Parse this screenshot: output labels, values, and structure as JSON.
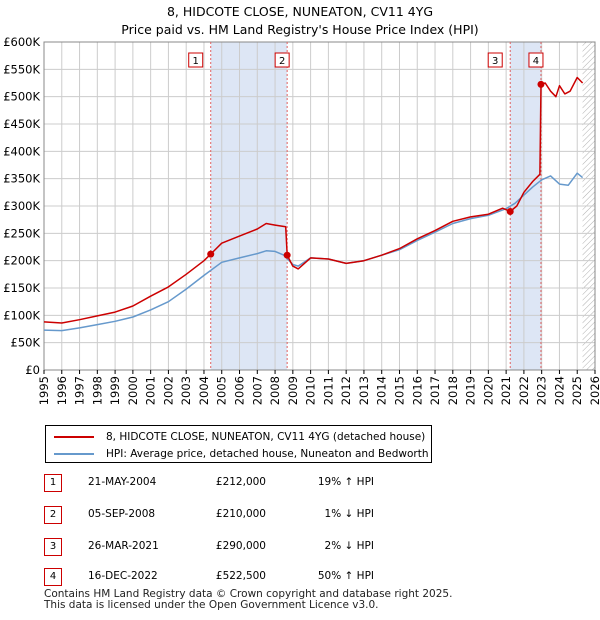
{
  "header": {
    "title_line1": "8, HIDCOTE CLOSE, NUNEATON, CV11 4YG",
    "title_line2": "Price paid vs. HM Land Registry's House Price Index (HPI)"
  },
  "colors": {
    "price_line": "#cc0000",
    "hpi_line": "#6699cc",
    "shade": "#dde6f5",
    "grid": "#cccccc",
    "marker_line": "#e06060"
  },
  "chart_data": {
    "type": "line",
    "x_range": [
      1995,
      2026
    ],
    "ylim": [
      0,
      600000
    ],
    "yticks": [
      0,
      50000,
      100000,
      150000,
      200000,
      250000,
      300000,
      350000,
      400000,
      450000,
      500000,
      550000,
      600000
    ],
    "ytick_labels": [
      "£0",
      "£50K",
      "£100K",
      "£150K",
      "£200K",
      "£250K",
      "£300K",
      "£350K",
      "£400K",
      "£450K",
      "£500K",
      "£550K",
      "£600K"
    ],
    "xticks": [
      "1995",
      "1996",
      "1997",
      "1998",
      "1999",
      "2000",
      "2001",
      "2002",
      "2003",
      "2004",
      "2005",
      "2006",
      "2007",
      "2008",
      "2009",
      "2010",
      "2011",
      "2012",
      "2013",
      "2014",
      "2015",
      "2016",
      "2017",
      "2018",
      "2019",
      "2020",
      "2021",
      "2022",
      "2023",
      "2024",
      "2025",
      "2026"
    ],
    "shaded_ranges": [
      [
        2004.38,
        2008.68
      ],
      [
        2021.23,
        2022.96
      ]
    ],
    "hatched_from": 2025.3,
    "series": [
      {
        "name": "8, HIDCOTE CLOSE, NUNEATON, CV11 4YG (detached house)",
        "x": [
          1995,
          1996,
          1997,
          1998,
          1999,
          2000,
          2001,
          2002,
          2003,
          2004,
          2004.38,
          2005,
          2006,
          2007,
          2007.5,
          2008,
          2008.6,
          2008.68,
          2009,
          2009.3,
          2010,
          2011,
          2012,
          2013,
          2014,
          2015,
          2016,
          2017,
          2018,
          2019,
          2020,
          2020.8,
          2021.23,
          2021.6,
          2022,
          2022.5,
          2022.9,
          2022.96,
          2023.2,
          2023.5,
          2023.8,
          2024,
          2024.3,
          2024.6,
          2025,
          2025.3
        ],
        "y": [
          88000,
          86000,
          92000,
          99000,
          106000,
          117000,
          135000,
          152000,
          175000,
          200000,
          212000,
          232000,
          245000,
          258000,
          268000,
          265000,
          262000,
          210000,
          190000,
          185000,
          205000,
          203000,
          195000,
          200000,
          210000,
          222000,
          240000,
          255000,
          272000,
          280000,
          285000,
          296000,
          290000,
          300000,
          325000,
          345000,
          358000,
          522500,
          525000,
          510000,
          500000,
          520000,
          505000,
          510000,
          535000,
          525000
        ]
      },
      {
        "name": "HPI: Average price, detached house, Nuneaton and Bedworth",
        "x": [
          1995,
          1996,
          1997,
          1998,
          1999,
          2000,
          2001,
          2002,
          2003,
          2004,
          2005,
          2006,
          2007,
          2007.5,
          2008,
          2008.5,
          2009,
          2009.3,
          2010,
          2011,
          2012,
          2013,
          2014,
          2015,
          2016,
          2017,
          2018,
          2019,
          2020,
          2021,
          2021.5,
          2022,
          2022.5,
          2023,
          2023.5,
          2024,
          2024.5,
          2025,
          2025.3
        ],
        "y": [
          73000,
          72000,
          77000,
          83000,
          89000,
          97000,
          110000,
          125000,
          148000,
          173000,
          197000,
          205000,
          213000,
          218000,
          217000,
          210000,
          193000,
          190000,
          205000,
          203000,
          195000,
          200000,
          210000,
          220000,
          237000,
          252000,
          268000,
          277000,
          283000,
          295000,
          305000,
          320000,
          335000,
          348000,
          355000,
          340000,
          338000,
          360000,
          352000
        ]
      }
    ],
    "sale_markers": [
      {
        "label": "1",
        "x": 2004.38,
        "y": 212000
      },
      {
        "label": "2",
        "x": 2008.68,
        "y": 210000
      },
      {
        "label": "3",
        "x": 2021.23,
        "y": 290000
      },
      {
        "label": "4",
        "x": 2022.96,
        "y": 522500
      }
    ]
  },
  "legend": {
    "price_label": "8, HIDCOTE CLOSE, NUNEATON, CV11 4YG (detached house)",
    "hpi_label": "HPI: Average price, detached house, Nuneaton and Bedworth"
  },
  "sales": [
    {
      "num": "1",
      "date": "21-MAY-2004",
      "price": "£212,000",
      "hpi": "19% ↑ HPI"
    },
    {
      "num": "2",
      "date": "05-SEP-2008",
      "price": "£210,000",
      "hpi": "1% ↓ HPI"
    },
    {
      "num": "3",
      "date": "26-MAR-2021",
      "price": "£290,000",
      "hpi": "2% ↓ HPI"
    },
    {
      "num": "4",
      "date": "16-DEC-2022",
      "price": "£522,500",
      "hpi": "50% ↑ HPI"
    }
  ],
  "footer": {
    "line1": "Contains HM Land Registry data © Crown copyright and database right 2025.",
    "line2": "This data is licensed under the Open Government Licence v3.0."
  }
}
